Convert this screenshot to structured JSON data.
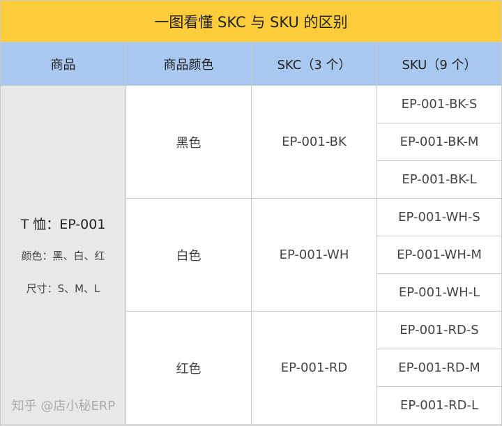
{
  "title": "一图看懂 SKC 与 SKU 的区别",
  "headers": [
    "商品",
    "商品颜色",
    "SKC（3 个）",
    "SKU（9 个）"
  ],
  "product": {
    "name": "T 恤：EP-001",
    "colors": "颜色：黑、白、红",
    "sizes": "尺寸：S、M、L"
  },
  "groups": [
    {
      "color": "黑色",
      "skc": "EP-001-BK",
      "skus": [
        "EP-001-BK-S",
        "EP-001-BK-M",
        "EP-001-BK-L"
      ]
    },
    {
      "color": "白色",
      "skc": "EP-001-WH",
      "skus": [
        "EP-001-WH-S",
        "EP-001-WH-M",
        "EP-001-WH-L"
      ]
    },
    {
      "color": "红色",
      "skc": "EP-001-RD",
      "skus": [
        "EP-001-RD-S",
        "EP-001-RD-M",
        "EP-001-RD-L"
      ]
    }
  ],
  "watermark": "知乎 @店小秘ERP",
  "colors": {
    "title_bg": "#ffcd3c",
    "header_bg": "#a9c8f0",
    "product_bg": "#e8e8e8"
  }
}
